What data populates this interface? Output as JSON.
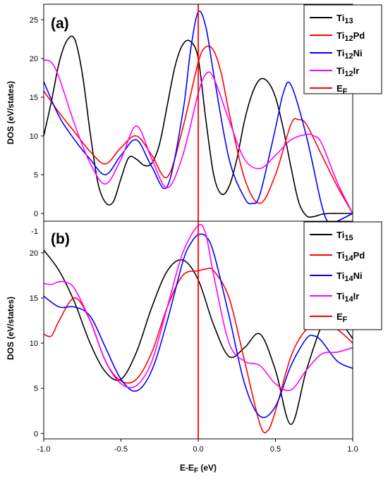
{
  "chart_data": [
    {
      "type": "line",
      "panel_label": "(a)",
      "ylabel": "DOS (eV/states)",
      "xlabel": "",
      "xlim": [
        -1.0,
        1.0
      ],
      "ylim": [
        -1.0,
        27.0
      ],
      "yticks": [
        "0",
        "5",
        "10",
        "15",
        "20",
        "25"
      ],
      "xticks": [],
      "grid": false,
      "legend_position": "top-right",
      "series": [
        {
          "name_base": "Ti",
          "name_sub": "13",
          "name_suffix": "",
          "color": "#000000",
          "x": [
            -1.0,
            -0.95,
            -0.9,
            -0.85,
            -0.8,
            -0.75,
            -0.7,
            -0.65,
            -0.6,
            -0.55,
            -0.5,
            -0.45,
            -0.4,
            -0.35,
            -0.3,
            -0.25,
            -0.2,
            -0.15,
            -0.1,
            -0.05,
            0.0,
            0.05,
            0.1,
            0.15,
            0.2,
            0.25,
            0.3,
            0.35,
            0.4,
            0.45,
            0.5,
            0.55,
            0.6,
            0.65,
            0.7,
            0.75,
            0.8,
            0.85,
            0.9,
            0.95,
            1.0
          ],
          "y": [
            10.0,
            14.5,
            19.5,
            22.3,
            22.5,
            18.0,
            10.5,
            4.0,
            1.4,
            1.5,
            4.5,
            7.2,
            7.0,
            6.2,
            6.5,
            9.0,
            14.0,
            19.0,
            21.8,
            22.2,
            20.0,
            12.0,
            5.0,
            2.5,
            3.5,
            7.0,
            12.0,
            15.5,
            17.3,
            17.0,
            15.0,
            11.0,
            6.0,
            1.5,
            -0.3,
            -0.4,
            -0.1,
            0.0,
            0.0,
            0.0,
            0.0
          ]
        },
        {
          "name_base": "Ti",
          "name_sub": "12",
          "name_suffix": "Pd",
          "color": "#ff0000",
          "x": [
            -1.0,
            -0.9,
            -0.8,
            -0.7,
            -0.6,
            -0.5,
            -0.4,
            -0.3,
            -0.2,
            -0.1,
            0.0,
            0.05,
            0.1,
            0.15,
            0.2,
            0.3,
            0.4,
            0.5,
            0.6,
            0.65,
            0.7,
            0.8,
            0.9,
            1.0
          ],
          "y": [
            15.8,
            13.0,
            10.5,
            8.0,
            6.4,
            8.5,
            10.0,
            7.5,
            4.7,
            11.0,
            19.5,
            21.5,
            21.0,
            18.0,
            13.0,
            4.5,
            1.3,
            5.0,
            11.5,
            12.1,
            11.5,
            7.5,
            3.5,
            0.0
          ]
        },
        {
          "name_base": "Ti",
          "name_sub": "12",
          "name_suffix": "Ni",
          "color": "#0000ff",
          "x": [
            -1.0,
            -0.9,
            -0.8,
            -0.7,
            -0.6,
            -0.5,
            -0.4,
            -0.3,
            -0.2,
            -0.1,
            -0.05,
            0.0,
            0.05,
            0.1,
            0.2,
            0.3,
            0.35,
            0.4,
            0.5,
            0.55,
            0.6,
            0.7,
            0.8,
            0.85,
            0.9,
            1.0
          ],
          "y": [
            17.0,
            12.5,
            9.5,
            7.0,
            5.0,
            7.5,
            9.5,
            6.0,
            3.5,
            13.0,
            21.0,
            26.0,
            24.0,
            18.0,
            7.0,
            2.0,
            1.3,
            2.5,
            11.0,
            15.5,
            16.6,
            10.0,
            1.0,
            -1.3,
            -1.0,
            0.0
          ]
        },
        {
          "name_base": "Ti",
          "name_sub": "12",
          "name_suffix": "Ir",
          "color": "#ff00ff",
          "x": [
            -1.0,
            -0.95,
            -0.9,
            -0.8,
            -0.7,
            -0.6,
            -0.5,
            -0.4,
            -0.3,
            -0.2,
            -0.1,
            0.0,
            0.05,
            0.1,
            0.2,
            0.3,
            0.4,
            0.5,
            0.6,
            0.7,
            0.75,
            0.8,
            0.9,
            1.0
          ],
          "y": [
            19.8,
            19.5,
            17.5,
            11.5,
            6.5,
            3.8,
            7.0,
            11.3,
            7.0,
            3.3,
            7.5,
            15.5,
            18.0,
            17.5,
            12.0,
            7.0,
            5.8,
            7.5,
            9.5,
            10.2,
            10.0,
            9.0,
            4.0,
            0.0
          ]
        }
      ],
      "vline": {
        "name_base": "E",
        "name_sub": "F",
        "x": 0.0,
        "color": "#ff0000"
      }
    },
    {
      "type": "line",
      "panel_label": "(b)",
      "ylabel": "DOS (eV/states)",
      "xlabel_base": "E-E",
      "xlabel_sub": "F",
      "xlabel_suffix": " (eV)",
      "xlim": [
        -1.0,
        1.0
      ],
      "ylim": [
        -0.6,
        23.5
      ],
      "yticks": [
        "0",
        "5",
        "10",
        "15",
        "20"
      ],
      "extra_ytick": "-1",
      "xticks": [
        "-1.0",
        "-0.5",
        "0.0",
        "0.5",
        "1.0"
      ],
      "grid": false,
      "legend_position": "top-right",
      "series": [
        {
          "name_base": "Ti",
          "name_sub": "15",
          "name_suffix": "",
          "color": "#000000",
          "x": [
            -1.0,
            -0.9,
            -0.8,
            -0.7,
            -0.6,
            -0.5,
            -0.4,
            -0.3,
            -0.2,
            -0.1,
            0.0,
            0.1,
            0.2,
            0.3,
            0.4,
            0.5,
            0.6,
            0.7,
            0.8,
            0.85,
            0.9,
            1.0
          ],
          "y": [
            20.3,
            18.0,
            14.5,
            10.0,
            6.8,
            6.0,
            9.0,
            14.0,
            18.0,
            19.2,
            17.0,
            12.0,
            8.5,
            9.5,
            11.0,
            7.0,
            1.0,
            7.0,
            12.0,
            13.0,
            12.8,
            10.5
          ]
        },
        {
          "name_base": "Ti",
          "name_sub": "14",
          "name_suffix": "Pd",
          "color": "#ff0000",
          "x": [
            -1.0,
            -0.95,
            -0.9,
            -0.8,
            -0.7,
            -0.6,
            -0.5,
            -0.4,
            -0.3,
            -0.2,
            -0.1,
            0.0,
            0.05,
            0.1,
            0.2,
            0.3,
            0.4,
            0.45,
            0.5,
            0.6,
            0.7,
            0.8,
            0.9,
            1.0
          ],
          "y": [
            11.0,
            10.8,
            12.5,
            15.0,
            12.5,
            8.0,
            5.8,
            6.0,
            9.0,
            14.0,
            17.5,
            18.0,
            18.2,
            18.0,
            15.0,
            8.0,
            1.0,
            0.3,
            2.5,
            8.5,
            11.5,
            12.0,
            11.5,
            10.0
          ]
        },
        {
          "name_base": "Ti",
          "name_sub": "14",
          "name_suffix": "Ni",
          "color": "#0000ff",
          "x": [
            -1.0,
            -0.9,
            -0.8,
            -0.7,
            -0.6,
            -0.5,
            -0.4,
            -0.3,
            -0.2,
            -0.1,
            -0.05,
            0.0,
            0.05,
            0.1,
            0.2,
            0.3,
            0.4,
            0.5,
            0.6,
            0.7,
            0.75,
            0.8,
            0.9,
            1.0
          ],
          "y": [
            15.2,
            14.0,
            14.0,
            13.0,
            9.5,
            6.0,
            4.7,
            7.0,
            12.5,
            19.0,
            21.0,
            22.0,
            21.8,
            20.0,
            13.0,
            5.5,
            1.9,
            3.0,
            7.5,
            10.5,
            10.8,
            10.2,
            8.0,
            7.2
          ]
        },
        {
          "name_base": "Ti",
          "name_sub": "14",
          "name_suffix": "Ir",
          "color": "#ff00ff",
          "x": [
            -1.0,
            -0.95,
            -0.9,
            -0.85,
            -0.8,
            -0.7,
            -0.6,
            -0.5,
            -0.4,
            -0.3,
            -0.2,
            -0.1,
            0.0,
            0.05,
            0.1,
            0.2,
            0.3,
            0.4,
            0.5,
            0.6,
            0.7,
            0.8,
            0.9,
            1.0
          ],
          "y": [
            16.6,
            16.5,
            16.8,
            16.7,
            16.0,
            12.5,
            8.0,
            5.5,
            5.3,
            8.0,
            14.0,
            20.0,
            23.0,
            22.0,
            17.5,
            10.0,
            8.0,
            7.5,
            5.5,
            4.8,
            7.0,
            8.8,
            9.0,
            9.5
          ]
        }
      ],
      "vline": {
        "name_base": "E",
        "name_sub": "F",
        "x": 0.0,
        "color": "#ff0000"
      }
    }
  ]
}
